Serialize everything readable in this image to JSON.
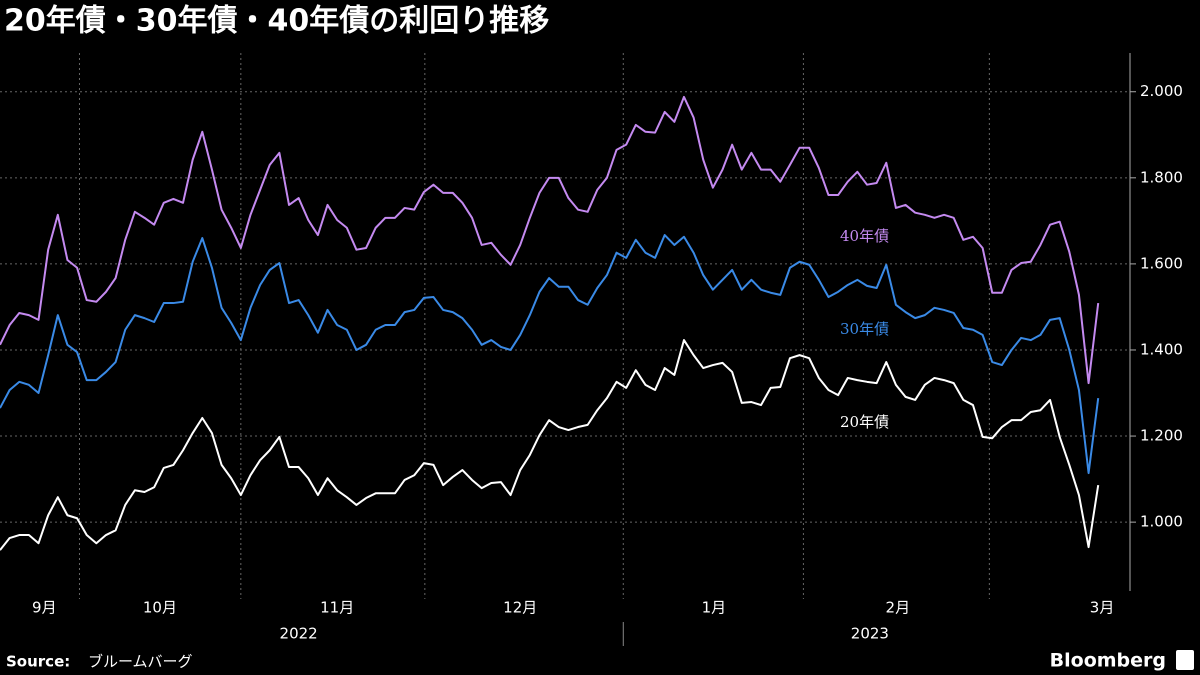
{
  "chart_data": {
    "type": "line",
    "title": "20年債・30年債・40年債の利回り推移",
    "source_label": "Source:",
    "source": "ブルームバーグ",
    "brand": "Bloomberg",
    "xlim": [
      0,
      117.3
    ],
    "ylim": [
      0.84,
      2.09
    ],
    "yticks": [
      {
        "value": 1.0,
        "label": "1.000"
      },
      {
        "value": 1.2,
        "label": "1.200"
      },
      {
        "value": 1.4,
        "label": "1.400"
      },
      {
        "value": 1.6,
        "label": "1.600"
      },
      {
        "value": 1.8,
        "label": "1.800"
      },
      {
        "value": 2.0,
        "label": "2.000"
      }
    ],
    "xticks": [
      {
        "value": 4.6,
        "label": "9月"
      },
      {
        "value": 16.6,
        "label": "10月"
      },
      {
        "value": 35,
        "label": "11月"
      },
      {
        "value": 54,
        "label": "12月"
      },
      {
        "value": 74.1,
        "label": "1月"
      },
      {
        "value": 93.2,
        "label": "2月"
      },
      {
        "value": 114.4,
        "label": "3月"
      }
    ],
    "xgrid": [
      8.25,
      25,
      44.1,
      64.7,
      83.4,
      102.7
    ],
    "year_ticks": [
      {
        "value": 31,
        "label": "2022"
      },
      {
        "value": 90.3,
        "label": "2023"
      }
    ],
    "year_divider": 64.7,
    "grid": true,
    "series": [
      {
        "name": "40年債",
        "color": "#c48af0",
        "values": [
          1.412,
          1.458,
          1.486,
          1.481,
          1.47,
          1.633,
          1.714,
          1.609,
          1.591,
          1.516,
          1.512,
          1.535,
          1.567,
          1.656,
          1.721,
          1.707,
          1.691,
          1.742,
          1.751,
          1.742,
          1.842,
          1.907,
          1.819,
          1.726,
          1.684,
          1.637,
          1.714,
          1.772,
          1.83,
          1.858,
          1.737,
          1.753,
          1.702,
          1.667,
          1.737,
          1.702,
          1.684,
          1.633,
          1.637,
          1.684,
          1.707,
          1.707,
          1.73,
          1.726,
          1.767,
          1.784,
          1.765,
          1.765,
          1.742,
          1.707,
          1.644,
          1.649,
          1.621,
          1.598,
          1.644,
          1.707,
          1.765,
          1.8,
          1.8,
          1.753,
          1.726,
          1.721,
          1.772,
          1.8,
          1.865,
          1.877,
          1.923,
          1.907,
          1.905,
          1.953,
          1.93,
          1.988,
          1.94,
          1.842,
          1.777,
          1.819,
          1.877,
          1.819,
          1.858,
          1.819,
          1.819,
          1.791,
          1.83,
          1.87,
          1.87,
          1.823,
          1.76,
          1.76,
          1.791,
          1.814,
          1.784,
          1.788,
          1.835,
          1.73,
          1.737,
          1.719,
          1.714,
          1.707,
          1.714,
          1.707,
          1.656,
          1.663,
          1.637,
          1.533,
          1.533,
          1.586,
          1.602,
          1.605,
          1.644,
          1.691,
          1.698,
          1.628,
          1.528,
          1.323,
          1.509
        ]
      },
      {
        "name": "30年債",
        "color": "#3a8ae6",
        "values": [
          1.265,
          1.307,
          1.326,
          1.319,
          1.3,
          1.388,
          1.481,
          1.412,
          1.395,
          1.33,
          1.33,
          1.349,
          1.372,
          1.447,
          1.481,
          1.474,
          1.465,
          1.509,
          1.509,
          1.512,
          1.605,
          1.66,
          1.591,
          1.498,
          1.463,
          1.423,
          1.498,
          1.551,
          1.586,
          1.602,
          1.509,
          1.516,
          1.481,
          1.44,
          1.493,
          1.458,
          1.447,
          1.4,
          1.412,
          1.447,
          1.458,
          1.458,
          1.488,
          1.493,
          1.521,
          1.523,
          1.493,
          1.488,
          1.474,
          1.447,
          1.412,
          1.423,
          1.407,
          1.4,
          1.435,
          1.481,
          1.535,
          1.567,
          1.547,
          1.547,
          1.516,
          1.505,
          1.544,
          1.574,
          1.626,
          1.614,
          1.656,
          1.626,
          1.614,
          1.667,
          1.644,
          1.663,
          1.626,
          1.574,
          1.54,
          1.563,
          1.586,
          1.54,
          1.563,
          1.54,
          1.533,
          1.528,
          1.591,
          1.605,
          1.598,
          1.563,
          1.523,
          1.535,
          1.551,
          1.563,
          1.549,
          1.544,
          1.598,
          1.505,
          1.488,
          1.474,
          1.481,
          1.498,
          1.493,
          1.486,
          1.451,
          1.447,
          1.435,
          1.372,
          1.365,
          1.4,
          1.428,
          1.423,
          1.435,
          1.47,
          1.474,
          1.4,
          1.307,
          1.114,
          1.288
        ]
      },
      {
        "name": "20年債",
        "color": "#ffffff",
        "values": [
          0.935,
          0.963,
          0.97,
          0.97,
          0.951,
          1.016,
          1.058,
          1.016,
          1.009,
          0.97,
          0.951,
          0.97,
          0.981,
          1.04,
          1.074,
          1.07,
          1.081,
          1.126,
          1.133,
          1.167,
          1.207,
          1.242,
          1.207,
          1.133,
          1.102,
          1.063,
          1.109,
          1.144,
          1.167,
          1.198,
          1.128,
          1.128,
          1.102,
          1.063,
          1.102,
          1.074,
          1.058,
          1.04,
          1.056,
          1.067,
          1.067,
          1.067,
          1.098,
          1.109,
          1.137,
          1.133,
          1.086,
          1.105,
          1.121,
          1.098,
          1.079,
          1.091,
          1.093,
          1.063,
          1.121,
          1.156,
          1.202,
          1.237,
          1.221,
          1.214,
          1.221,
          1.226,
          1.26,
          1.288,
          1.326,
          1.312,
          1.353,
          1.319,
          1.307,
          1.358,
          1.342,
          1.423,
          1.388,
          1.358,
          1.365,
          1.37,
          1.349,
          1.277,
          1.279,
          1.272,
          1.312,
          1.314,
          1.381,
          1.388,
          1.381,
          1.335,
          1.307,
          1.295,
          1.335,
          1.33,
          1.326,
          1.323,
          1.372,
          1.319,
          1.291,
          1.284,
          1.319,
          1.335,
          1.33,
          1.323,
          1.284,
          1.272,
          1.198,
          1.195,
          1.221,
          1.237,
          1.237,
          1.256,
          1.26,
          1.284,
          1.198,
          1.133,
          1.063,
          0.942,
          1.086
        ]
      }
    ]
  }
}
